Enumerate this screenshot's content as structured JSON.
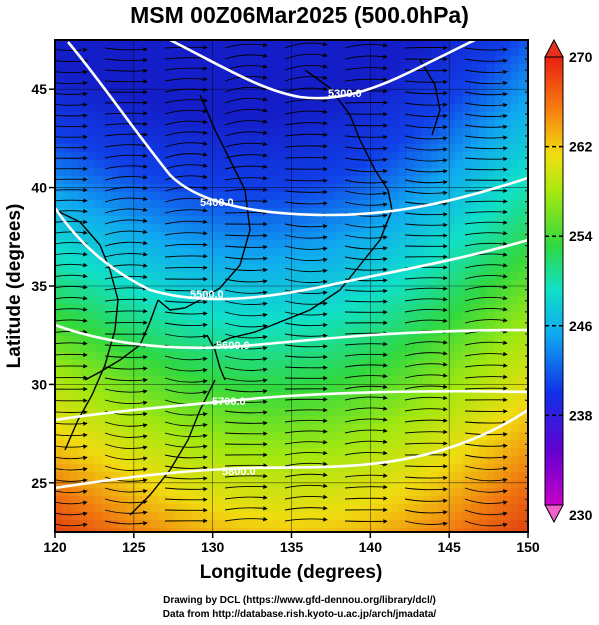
{
  "title": "MSM 00Z06Mar2025 (500.0hPa)",
  "axes": {
    "xlabel": "Longitude (degrees)",
    "ylabel": "Latitude  (degrees)",
    "xlim": [
      120,
      150
    ],
    "ylim": [
      22.5,
      47.5
    ],
    "xticks": [
      "120",
      "125",
      "130",
      "135",
      "140",
      "145",
      "150"
    ],
    "yticks": [
      "25",
      "30",
      "35",
      "40",
      "45"
    ]
  },
  "colorbar": {
    "min": 230,
    "max": 270,
    "tick_labels": [
      "270",
      "262",
      "254",
      "246",
      "238",
      "230"
    ],
    "tick_values": [
      270,
      262,
      254,
      246,
      238,
      230
    ]
  },
  "contours": [
    {
      "label": "5300.0"
    },
    {
      "label": "5400.0"
    },
    {
      "label": "5500.0"
    },
    {
      "label": "5600.0"
    },
    {
      "label": "5700.0"
    },
    {
      "label": "5800.0"
    }
  ],
  "credits": {
    "line1": "Drawing by DCL (https://www.gfd-dennou.org/library/dcl/)",
    "line2": "Data from http://database.rish.kyoto-u.ac.jp/arch/jmadata/"
  }
}
